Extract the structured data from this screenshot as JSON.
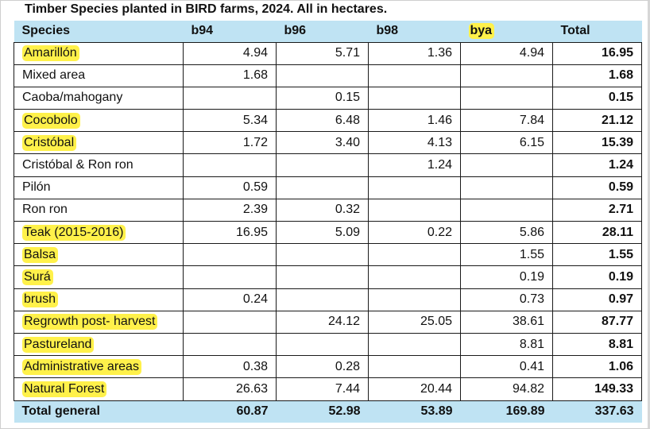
{
  "title": "Timber Species planted in BIRD farms, 2024. All in hectares.",
  "colors": {
    "header_bg": "#bfe3f3",
    "highlight": "#fff14a"
  },
  "headers": [
    "Species",
    "b94",
    "b96",
    "b98",
    "bya",
    "Total"
  ],
  "rows": [
    {
      "species": "Amarillón",
      "b94": "4.94",
      "b96": "5.71",
      "b98": "1.36",
      "bya": "4.94",
      "total": "16.95"
    },
    {
      "species": "Mixed area",
      "b94": "1.68",
      "b96": "",
      "b98": "",
      "bya": "",
      "total": "1.68"
    },
    {
      "species": "Caoba/mahogany",
      "b94": "",
      "b96": "0.15",
      "b98": "",
      "bya": "",
      "total": "0.15"
    },
    {
      "species": "Cocobolo",
      "b94": "5.34",
      "b96": "6.48",
      "b98": "1.46",
      "bya": "7.84",
      "total": "21.12"
    },
    {
      "species": "Cristóbal",
      "b94": "1.72",
      "b96": "3.40",
      "b98": "4.13",
      "bya": "6.15",
      "total": "15.39"
    },
    {
      "species": "Cristóbal & Ron ron",
      "b94": "",
      "b96": "",
      "b98": "1.24",
      "bya": "",
      "total": "1.24"
    },
    {
      "species": "Pilón",
      "b94": "0.59",
      "b96": "",
      "b98": "",
      "bya": "",
      "total": "0.59"
    },
    {
      "species": "Ron ron",
      "b94": "2.39",
      "b96": "0.32",
      "b98": "",
      "bya": "",
      "total": "2.71"
    },
    {
      "species": "Teak (2015-2016)",
      "b94": "16.95",
      "b96": "5.09",
      "b98": "0.22",
      "bya": "5.86",
      "total": "28.11"
    },
    {
      "species": "Balsa",
      "b94": "",
      "b96": "",
      "b98": "",
      "bya": "1.55",
      "total": "1.55"
    },
    {
      "species": "Surá",
      "b94": "",
      "b96": "",
      "b98": "",
      "bya": "0.19",
      "total": "0.19"
    },
    {
      "species": "brush",
      "b94": "0.24",
      "b96": "",
      "b98": "",
      "bya": "0.73",
      "total": "0.97"
    },
    {
      "species": "Regrowth post- harvest",
      "b94": "",
      "b96": "24.12",
      "b98": "25.05",
      "bya": "38.61",
      "total": "87.77"
    },
    {
      "species": "Pastureland",
      "b94": "",
      "b96": "",
      "b98": "",
      "bya": "8.81",
      "total": "8.81"
    },
    {
      "species": "Administrative areas",
      "b94": "0.38",
      "b96": "0.28",
      "b98": "",
      "bya": "0.41",
      "total": "1.06"
    },
    {
      "species": "Natural Forest",
      "b94": "26.63",
      "b96": "7.44",
      "b98": "20.44",
      "bya": "94.82",
      "total": "149.33"
    }
  ],
  "footer": {
    "label": "Total general",
    "b94": "60.87",
    "b96": "52.98",
    "b98": "53.89",
    "bya": "169.89",
    "total": "337.63"
  }
}
